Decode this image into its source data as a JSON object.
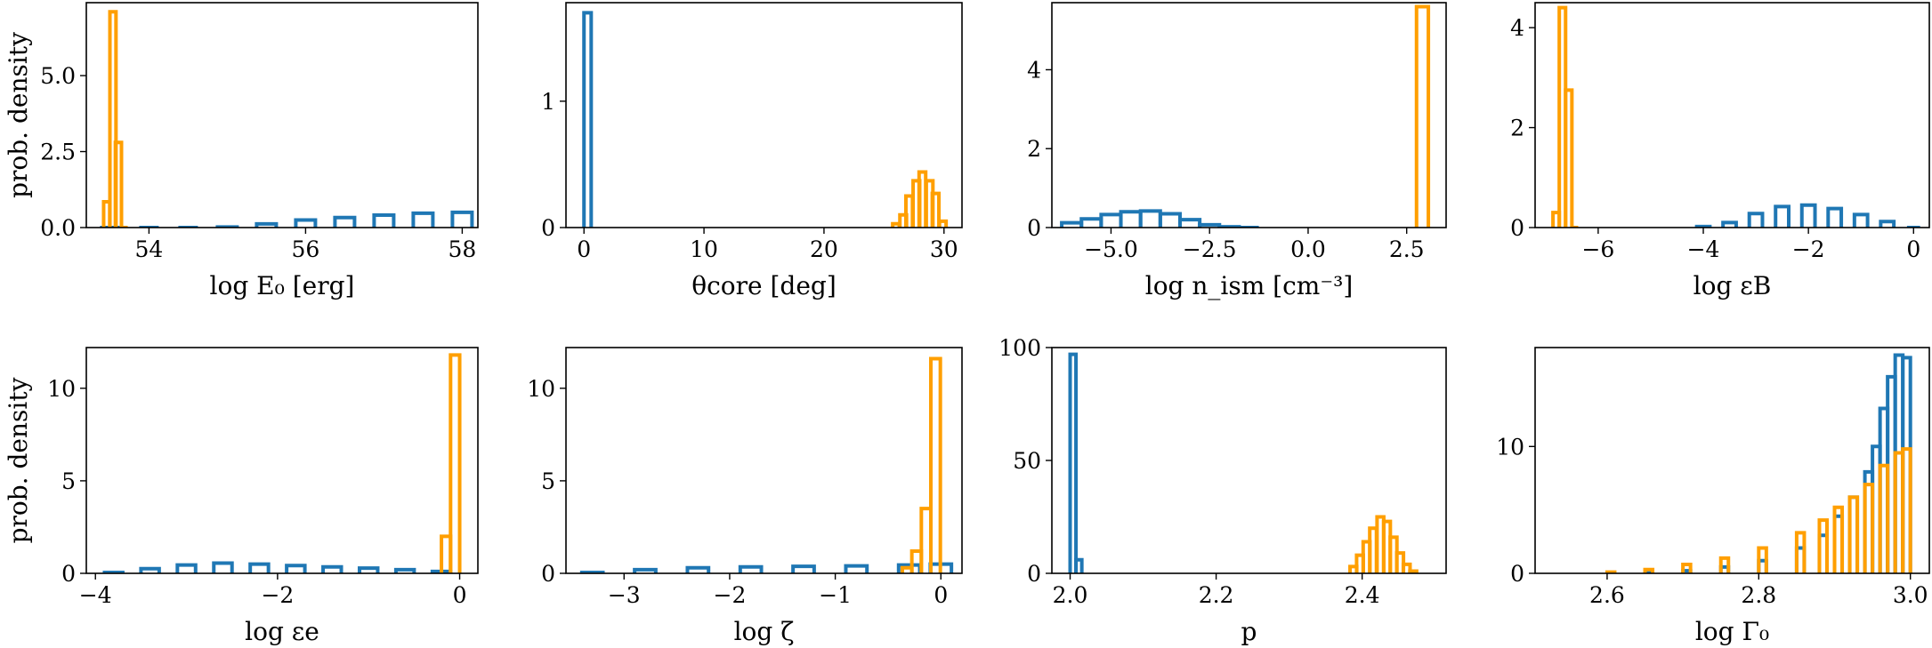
{
  "colors": {
    "blue": "#1f77b4",
    "orange": "#ff9f00"
  },
  "chart_data": [
    {
      "type": "histogram",
      "xlabel": "log E₀ [erg]",
      "ylabel": "prob. density",
      "xlim": [
        53.2,
        58.2
      ],
      "ylim": [
        0,
        7.4
      ],
      "xticks": [
        54,
        56,
        58
      ],
      "xtick_labels": [
        "54",
        "56",
        "58"
      ],
      "yticks": [
        0,
        2.5,
        5
      ],
      "ytick_labels": [
        "0.0",
        "2.5",
        "5.0"
      ],
      "series": [
        {
          "color": "blue",
          "bin_width": 0.25,
          "x": [
            53.5,
            54,
            54.5,
            55,
            55.5,
            56,
            56.5,
            57,
            57.5,
            58
          ],
          "y": [
            0,
            0,
            0,
            0.02,
            0.12,
            0.25,
            0.33,
            0.41,
            0.47,
            0.5
          ]
        },
        {
          "color": "orange",
          "bin_width": 0.0775,
          "x": [
            53.46,
            53.54,
            53.61,
            53.69
          ],
          "y": [
            0.85,
            7.1,
            2.8,
            0
          ]
        }
      ]
    },
    {
      "type": "histogram",
      "xlabel": "θcore [deg]",
      "ylabel": "",
      "xlim": [
        -1.5,
        31.5
      ],
      "ylim": [
        0,
        1.78
      ],
      "xticks": [
        0,
        10,
        20,
        30
      ],
      "xtick_labels": [
        "0",
        "10",
        "20",
        "30"
      ],
      "yticks": [
        0,
        1
      ],
      "ytick_labels": [
        "0",
        "1"
      ],
      "series": [
        {
          "color": "blue",
          "bin_width": 0.6,
          "x": [
            0.3
          ],
          "y": [
            1.7
          ]
        },
        {
          "color": "orange",
          "bin_width": 0.55,
          "x": [
            26,
            26.6,
            27.1,
            27.7,
            28.2,
            28.8,
            29.3,
            29.9
          ],
          "y": [
            0.03,
            0.1,
            0.25,
            0.37,
            0.44,
            0.37,
            0.27,
            0.05
          ]
        }
      ]
    },
    {
      "type": "histogram",
      "xlabel": "log n_ism [cm⁻³]",
      "ylabel": "",
      "xlim": [
        -6.5,
        3.5
      ],
      "ylim": [
        0,
        5.7
      ],
      "xticks": [
        -5,
        -2.5,
        0,
        2.5
      ],
      "xtick_labels": [
        "−5.0",
        "−2.5",
        "0.0",
        "2.5"
      ],
      "yticks": [
        0,
        2,
        4
      ],
      "ytick_labels": [
        "0",
        "2",
        "4"
      ],
      "series": [
        {
          "color": "blue",
          "bin_width": 0.5,
          "x": [
            -6,
            -5.5,
            -5,
            -4.5,
            -4,
            -3.5,
            -3,
            -2.5,
            -2,
            -1.5
          ],
          "y": [
            0.12,
            0.22,
            0.33,
            0.4,
            0.42,
            0.35,
            0.2,
            0.07,
            0.02,
            0
          ]
        },
        {
          "color": "orange",
          "bin_width": 0.3,
          "x": [
            2.9
          ],
          "y": [
            5.6
          ]
        }
      ]
    },
    {
      "type": "histogram",
      "xlabel": "log εB",
      "ylabel": "",
      "xlim": [
        -7.2,
        0.3
      ],
      "ylim": [
        0,
        4.5
      ],
      "xticks": [
        -6,
        -4,
        -2,
        0
      ],
      "xtick_labels": [
        "−6",
        "−4",
        "−2",
        "0"
      ],
      "yticks": [
        0,
        2,
        4
      ],
      "ytick_labels": [
        "0",
        "2",
        "4"
      ],
      "series": [
        {
          "color": "blue",
          "bin_width": 0.25,
          "x": [
            -4,
            -3.5,
            -3,
            -2.5,
            -2,
            -1.5,
            -1,
            -0.5,
            0
          ],
          "y": [
            0.02,
            0.1,
            0.28,
            0.42,
            0.45,
            0.38,
            0.26,
            0.12,
            0
          ]
        },
        {
          "color": "orange",
          "bin_width": 0.12,
          "x": [
            -6.8,
            -6.68,
            -6.56,
            -6.44
          ],
          "y": [
            0.3,
            4.4,
            2.75,
            0
          ]
        }
      ]
    },
    {
      "type": "histogram",
      "xlabel": "log εe",
      "ylabel": "prob. density",
      "xlim": [
        -4.1,
        0.2
      ],
      "ylim": [
        0,
        12.2
      ],
      "xticks": [
        -4,
        -2,
        0
      ],
      "xtick_labels": [
        "−4",
        "−2",
        "0"
      ],
      "yticks": [
        0,
        5,
        10
      ],
      "ytick_labels": [
        "0",
        "5",
        "10"
      ],
      "series": [
        {
          "color": "blue",
          "bin_width": 0.2,
          "x": [
            -3.8,
            -3.4,
            -3,
            -2.6,
            -2.2,
            -1.8,
            -1.4,
            -1,
            -0.6,
            -0.2
          ],
          "y": [
            0.05,
            0.25,
            0.45,
            0.55,
            0.5,
            0.42,
            0.35,
            0.28,
            0.2,
            0.1
          ]
        },
        {
          "color": "orange",
          "bin_width": 0.1,
          "x": [
            -0.15,
            -0.05
          ],
          "y": [
            2.0,
            11.8
          ]
        }
      ]
    },
    {
      "type": "histogram",
      "xlabel": "log ζ",
      "ylabel": "",
      "xlim": [
        -3.55,
        0.2
      ],
      "ylim": [
        0,
        12.2
      ],
      "xticks": [
        -3,
        -2,
        -1,
        0
      ],
      "xtick_labels": [
        "−3",
        "−2",
        "−1",
        "0"
      ],
      "yticks": [
        0,
        5,
        10
      ],
      "ytick_labels": [
        "0",
        "5",
        "10"
      ],
      "series": [
        {
          "color": "blue",
          "bin_width": 0.2,
          "x": [
            -3.3,
            -2.8,
            -2.3,
            -1.8,
            -1.3,
            -0.8,
            -0.3,
            0
          ],
          "y": [
            0.05,
            0.2,
            0.3,
            0.35,
            0.38,
            0.4,
            0.45,
            0.5
          ]
        },
        {
          "color": "orange",
          "bin_width": 0.09,
          "x": [
            -0.32,
            -0.23,
            -0.14,
            -0.05
          ],
          "y": [
            0.3,
            1.2,
            3.5,
            11.6
          ]
        }
      ]
    },
    {
      "type": "histogram",
      "xlabel": "p",
      "ylabel": "",
      "xlim": [
        1.975,
        2.515
      ],
      "ylim": [
        0,
        100
      ],
      "xticks": [
        2.0,
        2.2,
        2.4
      ],
      "xtick_labels": [
        "2.0",
        "2.2",
        "2.4"
      ],
      "yticks": [
        0,
        50,
        100
      ],
      "ytick_labels": [
        "0",
        "50",
        "100"
      ],
      "series": [
        {
          "color": "blue",
          "bin_width": 0.008,
          "x": [
            2.004,
            2.012
          ],
          "y": [
            97,
            6
          ]
        },
        {
          "color": "orange",
          "bin_width": 0.0092,
          "x": [
            2.388,
            2.397,
            2.406,
            2.415,
            2.425,
            2.434,
            2.443,
            2.452,
            2.461,
            2.47
          ],
          "y": [
            3,
            8,
            14,
            20,
            25,
            23,
            16,
            9,
            4,
            1
          ]
        }
      ]
    },
    {
      "type": "histogram",
      "xlabel": "log Γ₀",
      "ylabel": "",
      "xlim": [
        2.505,
        3.025
      ],
      "ylim": [
        0,
        17.8
      ],
      "xticks": [
        2.6,
        2.8,
        3.0
      ],
      "xtick_labels": [
        "2.6",
        "2.8",
        "3.0"
      ],
      "yticks": [
        0,
        10
      ],
      "ytick_labels": [
        "0",
        "10"
      ],
      "series": [
        {
          "color": "blue",
          "bin_width": 0.01,
          "x": [
            2.655,
            2.705,
            2.755,
            2.805,
            2.855,
            2.885,
            2.905,
            2.925,
            2.945,
            2.955,
            2.965,
            2.975,
            2.985,
            2.995
          ],
          "y": [
            0.05,
            0.2,
            0.5,
            1.0,
            2.0,
            3.0,
            4.5,
            6.0,
            8.0,
            10.0,
            13.0,
            15.5,
            17.2,
            17.0
          ]
        },
        {
          "color": "orange",
          "bin_width": 0.01,
          "x": [
            2.605,
            2.655,
            2.705,
            2.755,
            2.805,
            2.855,
            2.885,
            2.905,
            2.925,
            2.945,
            2.965,
            2.985,
            2.995
          ],
          "y": [
            0.1,
            0.3,
            0.7,
            1.2,
            2.0,
            3.2,
            4.2,
            5.2,
            6.0,
            7.0,
            8.5,
            9.5,
            9.8
          ]
        }
      ]
    }
  ]
}
